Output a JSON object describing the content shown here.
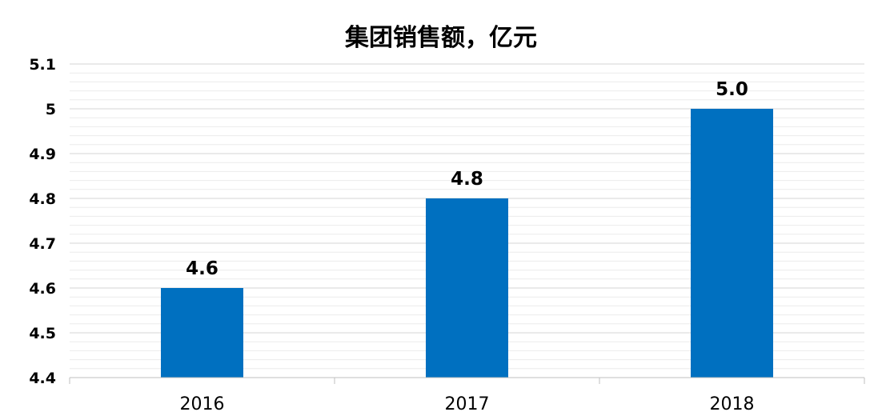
{
  "chart_data": {
    "type": "bar",
    "title": "集团销售额，亿元",
    "xlabel": "",
    "ylabel": "",
    "categories": [
      "2016",
      "2017",
      "2018"
    ],
    "values": [
      4.6,
      4.8,
      5.0
    ],
    "data_labels": [
      "4.6",
      "4.8",
      "5.0"
    ],
    "ylim": [
      4.4,
      5.1
    ],
    "yticks": [
      4.4,
      4.5,
      4.6,
      4.7,
      4.8,
      4.9,
      5.0,
      5.1
    ],
    "ytick_labels": [
      "4.4",
      "4.5",
      "4.6",
      "4.7",
      "4.8",
      "4.9",
      "5",
      "5.1"
    ],
    "grid": true,
    "legend": "none",
    "bar_color": "#0070C0"
  }
}
